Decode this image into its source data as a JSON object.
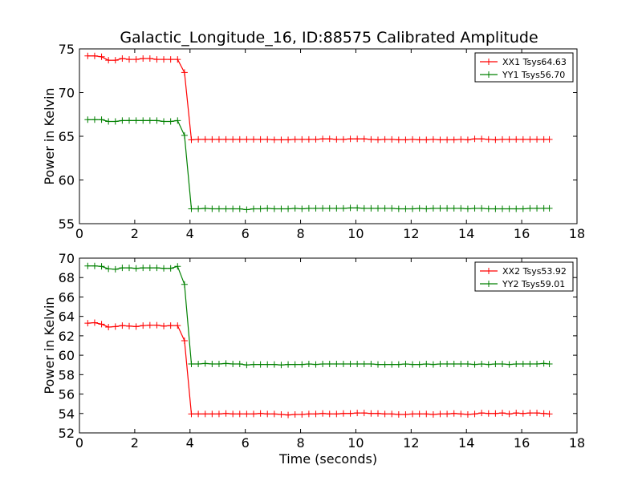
{
  "title": "Galactic_Longitude_16, ID:88575 Calibrated Amplitude",
  "colors": {
    "red": "#ff0000",
    "green": "#008000"
  },
  "chart_data": [
    {
      "type": "line",
      "ylabel": "Power in Kelvin",
      "xlabel": "",
      "xlim": [
        0,
        18
      ],
      "ylim": [
        55,
        75
      ],
      "xticks": [
        "0",
        "2",
        "4",
        "6",
        "8",
        "10",
        "12",
        "14",
        "16",
        "18"
      ],
      "yticks": [
        "55",
        "60",
        "65",
        "70",
        "75"
      ],
      "grid": false,
      "legend_position": "top-right",
      "x": [
        0.3,
        0.55,
        0.8,
        1.05,
        1.3,
        1.55,
        1.8,
        2.05,
        2.3,
        2.55,
        2.8,
        3.05,
        3.3,
        3.55,
        3.8,
        4.05,
        4.3,
        4.55,
        4.8,
        5.05,
        5.3,
        5.55,
        5.8,
        6.05,
        6.3,
        6.55,
        6.8,
        7.05,
        7.3,
        7.55,
        7.8,
        8.05,
        8.3,
        8.55,
        8.8,
        9.05,
        9.3,
        9.55,
        9.8,
        10.05,
        10.3,
        10.55,
        10.8,
        11.05,
        11.3,
        11.55,
        11.8,
        12.05,
        12.3,
        12.55,
        12.8,
        13.05,
        13.3,
        13.55,
        13.8,
        14.05,
        14.3,
        14.55,
        14.8,
        15.05,
        15.3,
        15.55,
        15.8,
        16.05,
        16.3,
        16.55,
        16.8,
        17.0
      ],
      "series": [
        {
          "name": "XX1 Tsys64.63",
          "color": "#ff0000",
          "values": [
            74.2,
            74.2,
            74.1,
            73.7,
            73.7,
            73.9,
            73.8,
            73.8,
            73.9,
            73.9,
            73.8,
            73.8,
            73.8,
            73.8,
            72.3,
            64.6,
            64.65,
            64.65,
            64.65,
            64.65,
            64.65,
            64.65,
            64.65,
            64.65,
            64.65,
            64.65,
            64.65,
            64.6,
            64.6,
            64.6,
            64.65,
            64.65,
            64.65,
            64.65,
            64.7,
            64.7,
            64.65,
            64.65,
            64.7,
            64.7,
            64.7,
            64.65,
            64.6,
            64.65,
            64.65,
            64.6,
            64.6,
            64.65,
            64.6,
            64.6,
            64.65,
            64.6,
            64.6,
            64.6,
            64.65,
            64.6,
            64.7,
            64.7,
            64.65,
            64.6,
            64.65,
            64.65,
            64.65,
            64.65,
            64.65,
            64.65,
            64.65,
            64.65
          ]
        },
        {
          "name": "YY1 Tsys56.70",
          "color": "#008000",
          "values": [
            66.9,
            66.9,
            66.9,
            66.7,
            66.7,
            66.8,
            66.8,
            66.8,
            66.8,
            66.8,
            66.8,
            66.7,
            66.7,
            66.8,
            65.1,
            56.7,
            56.7,
            56.75,
            56.7,
            56.7,
            56.7,
            56.7,
            56.7,
            56.6,
            56.7,
            56.7,
            56.75,
            56.7,
            56.7,
            56.7,
            56.75,
            56.7,
            56.75,
            56.75,
            56.75,
            56.75,
            56.75,
            56.75,
            56.8,
            56.8,
            56.75,
            56.75,
            56.75,
            56.75,
            56.75,
            56.7,
            56.7,
            56.7,
            56.75,
            56.7,
            56.75,
            56.75,
            56.75,
            56.75,
            56.75,
            56.7,
            56.75,
            56.75,
            56.7,
            56.7,
            56.7,
            56.7,
            56.7,
            56.7,
            56.75,
            56.75,
            56.75,
            56.75
          ]
        }
      ]
    },
    {
      "type": "line",
      "ylabel": "Power in Kelvin",
      "xlabel": "Time (seconds)",
      "xlim": [
        0,
        18
      ],
      "ylim": [
        52,
        70
      ],
      "xticks": [
        "0",
        "2",
        "4",
        "6",
        "8",
        "10",
        "12",
        "14",
        "16",
        "18"
      ],
      "yticks": [
        "52",
        "54",
        "56",
        "58",
        "60",
        "62",
        "64",
        "66",
        "68",
        "70"
      ],
      "grid": false,
      "legend_position": "top-right",
      "x": [
        0.3,
        0.55,
        0.8,
        1.05,
        1.3,
        1.55,
        1.8,
        2.05,
        2.3,
        2.55,
        2.8,
        3.05,
        3.3,
        3.55,
        3.8,
        4.05,
        4.3,
        4.55,
        4.8,
        5.05,
        5.3,
        5.55,
        5.8,
        6.05,
        6.3,
        6.55,
        6.8,
        7.05,
        7.3,
        7.55,
        7.8,
        8.05,
        8.3,
        8.55,
        8.8,
        9.05,
        9.3,
        9.55,
        9.8,
        10.05,
        10.3,
        10.55,
        10.8,
        11.05,
        11.3,
        11.55,
        11.8,
        12.05,
        12.3,
        12.55,
        12.8,
        13.05,
        13.3,
        13.55,
        13.8,
        14.05,
        14.3,
        14.55,
        14.8,
        15.05,
        15.3,
        15.55,
        15.8,
        16.05,
        16.3,
        16.55,
        16.8,
        17.0
      ],
      "series": [
        {
          "name": "XX2 Tsys53.92",
          "color": "#ff0000",
          "values": [
            63.3,
            63.35,
            63.2,
            62.9,
            62.95,
            63.05,
            63.0,
            62.95,
            63.05,
            63.1,
            63.1,
            63.0,
            63.05,
            63.05,
            61.5,
            53.95,
            53.95,
            53.95,
            53.95,
            53.95,
            54.0,
            53.95,
            53.95,
            53.95,
            53.95,
            54.0,
            53.95,
            53.95,
            53.9,
            53.85,
            53.9,
            53.9,
            53.95,
            53.95,
            54.0,
            53.95,
            53.95,
            54.0,
            54.0,
            54.05,
            54.05,
            54.0,
            54.0,
            53.95,
            53.95,
            53.9,
            53.9,
            53.95,
            53.95,
            53.95,
            53.9,
            53.95,
            53.95,
            54.0,
            53.95,
            53.9,
            53.95,
            54.05,
            54.0,
            54.0,
            54.05,
            53.95,
            54.05,
            54.0,
            54.05,
            54.05,
            54.0,
            53.95
          ]
        },
        {
          "name": "YY2 Tsys59.01",
          "color": "#008000",
          "values": [
            69.2,
            69.2,
            69.15,
            68.9,
            68.85,
            69.0,
            69.0,
            68.95,
            69.0,
            69.0,
            69.0,
            68.95,
            68.95,
            69.15,
            67.3,
            59.1,
            59.1,
            59.15,
            59.1,
            59.1,
            59.15,
            59.1,
            59.1,
            59.0,
            59.05,
            59.05,
            59.05,
            59.05,
            59.0,
            59.05,
            59.05,
            59.05,
            59.1,
            59.05,
            59.1,
            59.1,
            59.1,
            59.1,
            59.1,
            59.1,
            59.1,
            59.1,
            59.05,
            59.05,
            59.05,
            59.05,
            59.1,
            59.05,
            59.05,
            59.1,
            59.05,
            59.1,
            59.1,
            59.1,
            59.1,
            59.1,
            59.05,
            59.1,
            59.05,
            59.1,
            59.1,
            59.05,
            59.1,
            59.1,
            59.1,
            59.1,
            59.15,
            59.1
          ]
        }
      ]
    }
  ]
}
